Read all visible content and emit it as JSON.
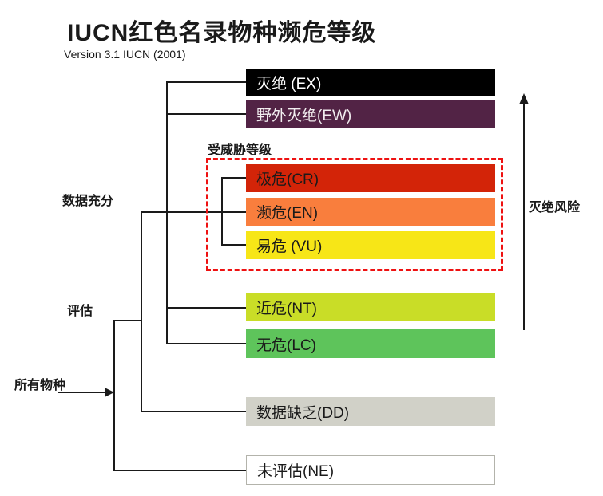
{
  "header": {
    "title": "IUCN红色名录物种濒危等级",
    "subtitle": "Version 3.1 IUCN (2001)"
  },
  "annotations": {
    "threatened_group_label": "受威胁等级",
    "data_sufficient_label": "数据充分",
    "evaluated_label": "评估",
    "all_species_label": "所有物种",
    "extinction_risk_label": "灭绝风险"
  },
  "categories": [
    {
      "id": "EX",
      "label": "灭绝 (EX)",
      "color": "#000000",
      "text_color": "#ffffff"
    },
    {
      "id": "EW",
      "label": "野外灭绝(EW)",
      "color": "#522345",
      "text_color": "#f2eef0"
    },
    {
      "id": "CR",
      "label": "极危(CR)",
      "color": "#d32408",
      "text_color": "#1a1a1a"
    },
    {
      "id": "EN",
      "label": "濒危(EN)",
      "color": "#f97e3d",
      "text_color": "#1a1a1a"
    },
    {
      "id": "VU",
      "label": "易危 (VU)",
      "color": "#f7e617",
      "text_color": "#1a1a1a"
    },
    {
      "id": "NT",
      "label": "近危(NT)",
      "color": "#c9dd27",
      "text_color": "#1a1a1a"
    },
    {
      "id": "LC",
      "label": "无危(LC)",
      "color": "#5ec45b",
      "text_color": "#1a1a1a"
    },
    {
      "id": "DD",
      "label": "数据缺乏(DD)",
      "color": "#d1d1c8",
      "text_color": "#1a1a1a"
    },
    {
      "id": "NE",
      "label": "未评估(NE)",
      "color": "#ffffff",
      "text_color": "#1a1a1a"
    }
  ],
  "colors": {
    "threatened_box_border": "#ee1111",
    "connector_line": "#1a1a1a",
    "ne_bar_border": "#b3b3ab"
  }
}
